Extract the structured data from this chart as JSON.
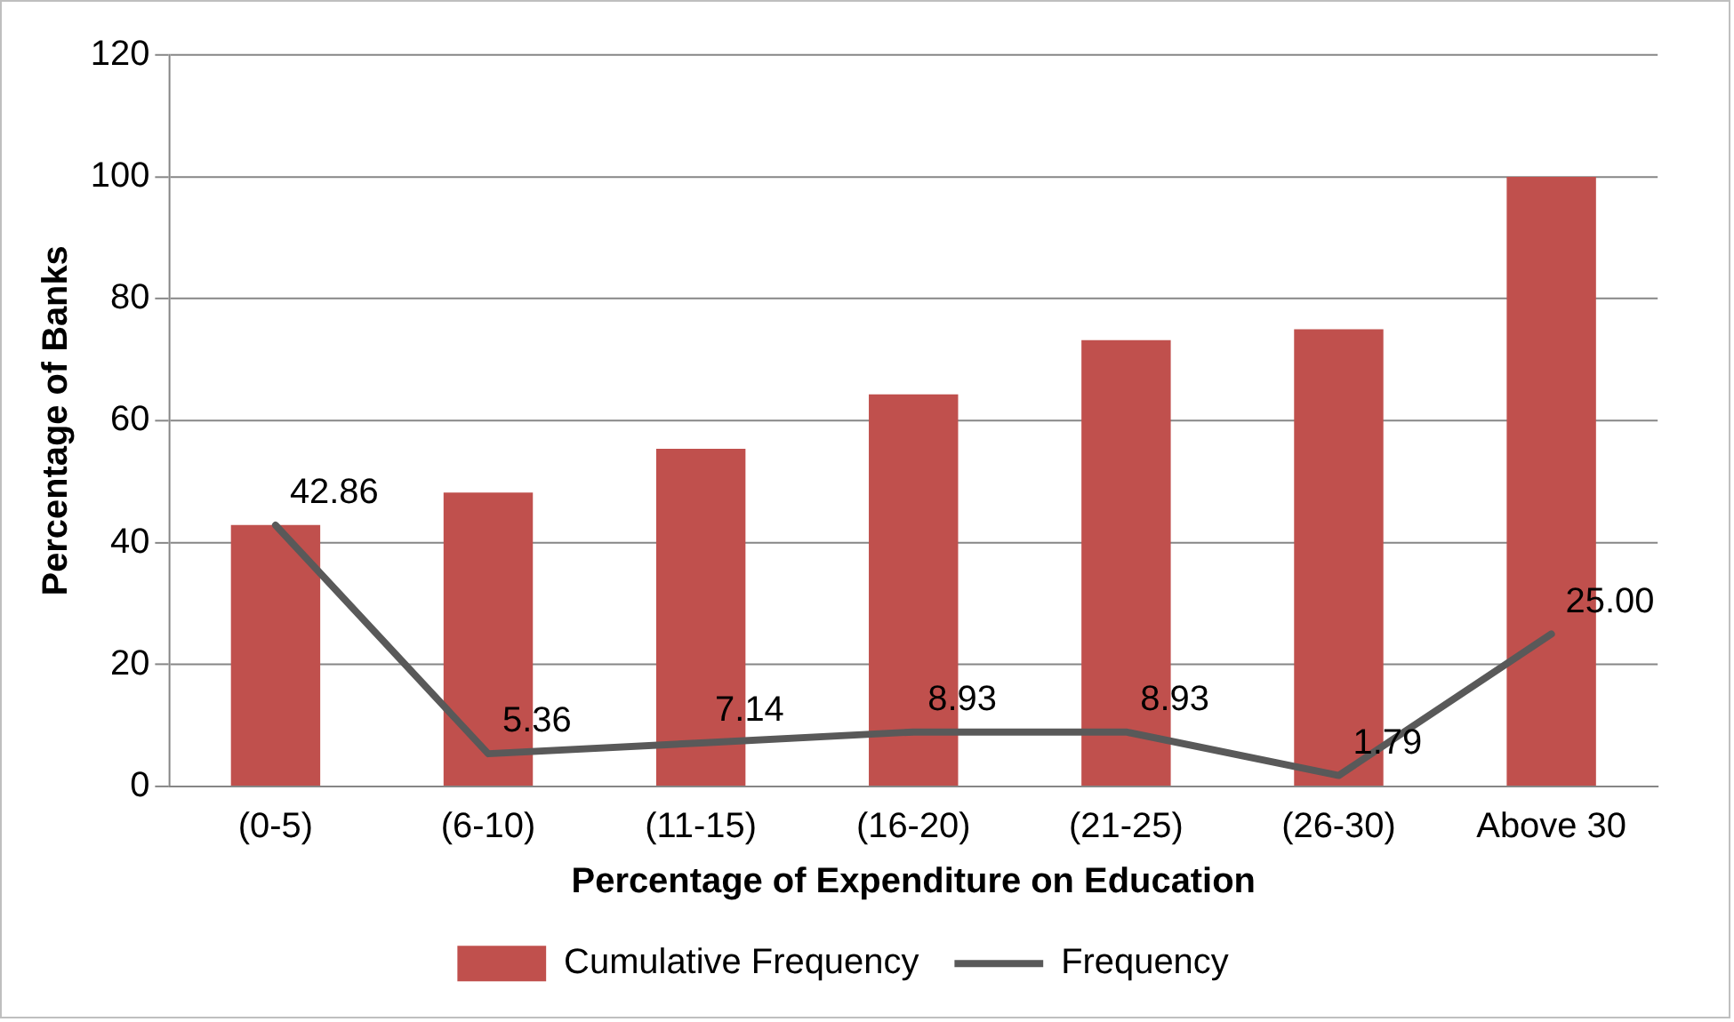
{
  "chart_data": {
    "type": "bar",
    "xlabel": "Percentage of Expenditure on Education",
    "ylabel": "Percentage of Banks",
    "categories": [
      "(0-5)",
      "(6-10)",
      "(11-15)",
      "(16-20)",
      "(21-25)",
      "(26-30)",
      "Above 30"
    ],
    "series": [
      {
        "name": "Cumulative Frequency",
        "color": "#c0504d",
        "values": [
          42.9,
          48.2,
          55.4,
          64.3,
          73.2,
          75.0,
          100
        ]
      },
      {
        "name": "Frequency",
        "type": "line",
        "color": "#595959",
        "values": [
          42.86,
          5.36,
          7.14,
          8.93,
          8.93,
          1.79,
          25.0
        ],
        "value_labels": [
          "42.86",
          "5.36",
          "7.14",
          "8.93",
          "8.93",
          "1.79",
          "25.00"
        ],
        "marker": "none"
      }
    ],
    "ylim": [
      0,
      120
    ],
    "yticks": [
      0,
      20,
      40,
      60,
      80,
      100,
      120
    ],
    "grid": "y",
    "legend": "bottom"
  }
}
